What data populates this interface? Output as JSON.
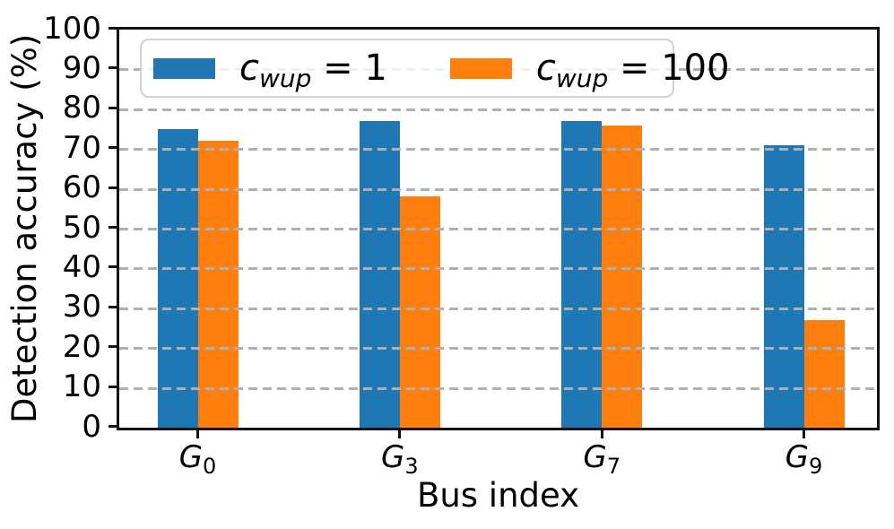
{
  "chart_data": {
    "type": "bar",
    "title": "",
    "xlabel": "Bus index",
    "ylabel": "Detection accuracy (%)",
    "categories": [
      {
        "base": "G",
        "sub": "0"
      },
      {
        "base": "G",
        "sub": "3"
      },
      {
        "base": "G",
        "sub": "7"
      },
      {
        "base": "G",
        "sub": "9"
      }
    ],
    "series": [
      {
        "name": "c_wup = 1",
        "legend": {
          "symbol": "c",
          "subscript": "wup",
          "rest": " = 1"
        },
        "color": "#1f77b4",
        "values": [
          75,
          77,
          77,
          71
        ]
      },
      {
        "name": "c_wup = 100",
        "legend": {
          "symbol": "c",
          "subscript": "wup",
          "rest": " = 100"
        },
        "color": "#ff7f0e",
        "values": [
          72,
          58,
          76,
          27
        ]
      }
    ],
    "ylim": [
      0,
      100
    ],
    "yticks": [
      0,
      10,
      20,
      30,
      40,
      50,
      60,
      70,
      80,
      90,
      100
    ],
    "grid": true,
    "grid_style": "dashed",
    "legend_position": "upper left"
  },
  "colors": {
    "bar_blue": "#1f77b4",
    "bar_orange": "#ff7f0e",
    "grid": "#b0b0b0",
    "spine": "#111111",
    "legend_border": "#d2d2d2"
  }
}
